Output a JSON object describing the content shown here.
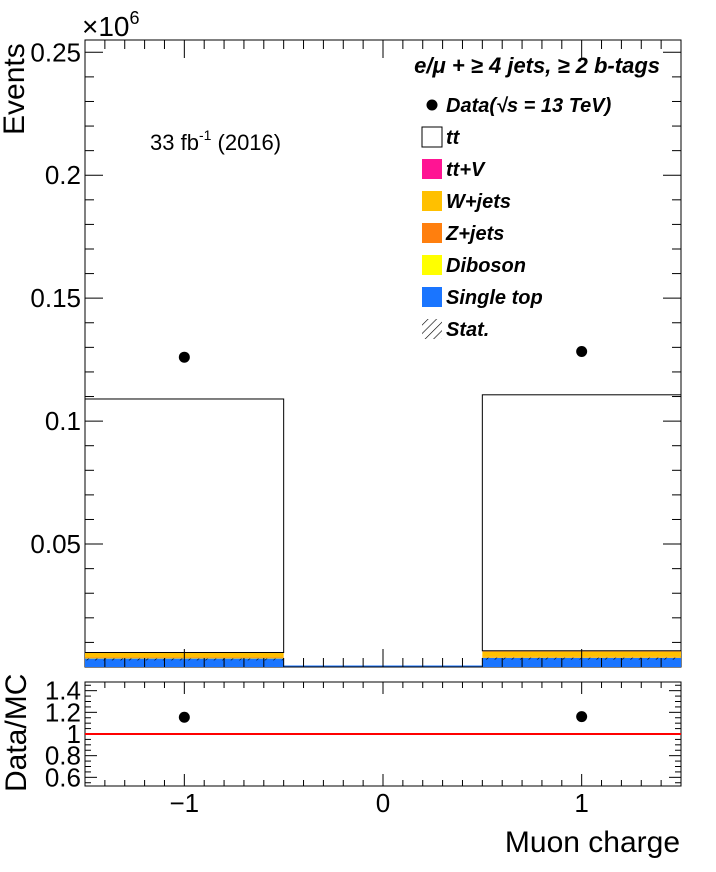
{
  "chart_data": [
    {
      "type": "bar",
      "stacked": true,
      "x_edges": [
        -1.5,
        -0.5,
        0.5,
        1.5
      ],
      "bin_centers": [
        -1,
        0,
        1
      ],
      "ylim": [
        0,
        0.255
      ],
      "y_multiplier_label": "×10",
      "y_multiplier_exponent": "6",
      "ylabel": "Events",
      "yticks": [
        0.05,
        0.1,
        0.15,
        0.2,
        0.25
      ],
      "ytick_labels": [
        "0.05",
        "0.1",
        "0.15",
        "0.2",
        "0.25"
      ],
      "header": "e/μ + ≥ 4 jets, ≥ 2 b-tags",
      "lumi_main": "33 fb",
      "lumi_exp": "-1",
      "lumi_year": " (2016)",
      "series": [
        {
          "name": "Single top",
          "color": "#1a75ff",
          "values": [
            0.0035,
            0.0,
            0.0038
          ]
        },
        {
          "name": "Diboson",
          "color": "#ffff00",
          "values": [
            0.0001,
            0.0,
            0.0001
          ]
        },
        {
          "name": "Z+jets",
          "color": "#ff7f0e",
          "values": [
            0.0003,
            0.0,
            0.0003
          ]
        },
        {
          "name": "W+jets",
          "color": "#ffc000",
          "values": [
            0.0018,
            0.0,
            0.0022
          ]
        },
        {
          "name": "tt+V",
          "color": "#ff1493",
          "values": [
            0.0002,
            0.0,
            0.0002
          ]
        },
        {
          "name": "tt",
          "color": "#ffffff",
          "values": [
            0.1031,
            0.0,
            0.1041
          ]
        }
      ],
      "data": {
        "name": "Data",
        "x": [
          -1,
          1
        ],
        "y": [
          0.126,
          0.1283
        ]
      },
      "legend": [
        {
          "label": "Data(√s = 13 TeV)",
          "kind": "marker",
          "color": "#000000"
        },
        {
          "label": "tt",
          "kind": "box",
          "color": "#ffffff"
        },
        {
          "label": "tt+V",
          "kind": "box",
          "color": "#ff1493"
        },
        {
          "label": "W+jets",
          "kind": "box",
          "color": "#ffc000"
        },
        {
          "label": "Z+jets",
          "kind": "box",
          "color": "#ff7f0e"
        },
        {
          "label": "Diboson",
          "kind": "box",
          "color": "#ffff00"
        },
        {
          "label": "Single top",
          "kind": "box",
          "color": "#1a75ff"
        },
        {
          "label": "Stat.",
          "kind": "hatch",
          "color": "#000000"
        }
      ]
    },
    {
      "type": "scatter",
      "ylabel": "Data/MC",
      "xlabel": "Muon charge",
      "xlim": [
        -1.5,
        1.5
      ],
      "ylim": [
        0.52,
        1.48
      ],
      "yticks": [
        0.6,
        0.8,
        1.0,
        1.2,
        1.4
      ],
      "ytick_labels": [
        "0.6",
        "0.8",
        "1",
        "1.2",
        "1.4"
      ],
      "xticks": [
        -1,
        0,
        1
      ],
      "xtick_labels": [
        "−1",
        "0",
        "1"
      ],
      "reference_line": {
        "y": 1.0,
        "color": "#ff0000"
      },
      "ratio": {
        "x": [
          -1,
          1
        ],
        "y": [
          1.155,
          1.16
        ]
      }
    }
  ]
}
